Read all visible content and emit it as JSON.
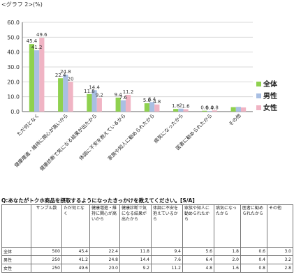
{
  "graph_label": "<グラフ 2>(%)",
  "chart_data": {
    "type": "bar",
    "categories": [
      "ただ何となく",
      "健康増進・維持に関心が高いから",
      "健康診断で気になる結果が出たから",
      "体調に不安を抱えているから",
      "家族や知人に勧められたから",
      "病気になったから",
      "医者に勧められたから",
      "その他"
    ],
    "series": [
      {
        "name": "全体",
        "values": [
          45.4,
          22.4,
          11.8,
          9.4,
          5.6,
          1.8,
          0.6,
          3.0
        ],
        "color": "#8fd14f"
      },
      {
        "name": "男性",
        "values": [
          41.2,
          24.8,
          14.4,
          7.6,
          6.4,
          2.0,
          0.4,
          3.2
        ],
        "color": "#a9bfe3"
      },
      {
        "name": "女性",
        "values": [
          49.6,
          20.0,
          9.2,
          11.2,
          4.8,
          1.6,
          0.8,
          2.8
        ],
        "color": "#f0b4c4"
      }
    ],
    "value_labels": [
      [
        "45.4",
        "41.2",
        "49.6"
      ],
      [
        "22.4",
        "24.8",
        "20"
      ],
      [
        "11.8",
        "14.4",
        "9.2"
      ],
      [
        "9.4",
        "7.6",
        "11.2"
      ],
      [
        "5.6",
        "6.4",
        "4.8"
      ],
      [
        "1.8",
        "2",
        "1.6"
      ],
      [
        "0.6",
        "0.4",
        "0.8"
      ],
      [
        "",
        "",
        ""
      ]
    ],
    "ylim": [
      0,
      60
    ],
    "yticks": [
      "0.0",
      "10.0",
      "20.0",
      "30.0",
      "40.0",
      "50.0",
      "60.0"
    ],
    "grid": true,
    "legend_position": "right"
  },
  "question": "Q:あなたがトクホ商品を摂取するようになったきっかけを教えてください。[S/A]",
  "table": {
    "headers": [
      "",
      "サンプル数",
      "ただ何となく",
      "健康増進・維持に関心が高いから",
      "健康診断で気になる結果が出たから",
      "体調に不安を抱えているから",
      "家族や知人に勧められたから",
      "病気になったから",
      "医者に勧められたから",
      "その他"
    ],
    "rows": [
      [
        "全体",
        "500",
        "45.4",
        "22.4",
        "11.8",
        "9.4",
        "5.6",
        "1.8",
        "0.6",
        "3.0"
      ],
      [
        "男性",
        "250",
        "41.2",
        "24.8",
        "14.4",
        "7.6",
        "6.4",
        "2.0",
        "0.4",
        "3.2"
      ],
      [
        "女性",
        "250",
        "49.6",
        "20.0",
        "9.2",
        "11.2",
        "4.8",
        "1.6",
        "0.8",
        "2.8"
      ]
    ]
  }
}
